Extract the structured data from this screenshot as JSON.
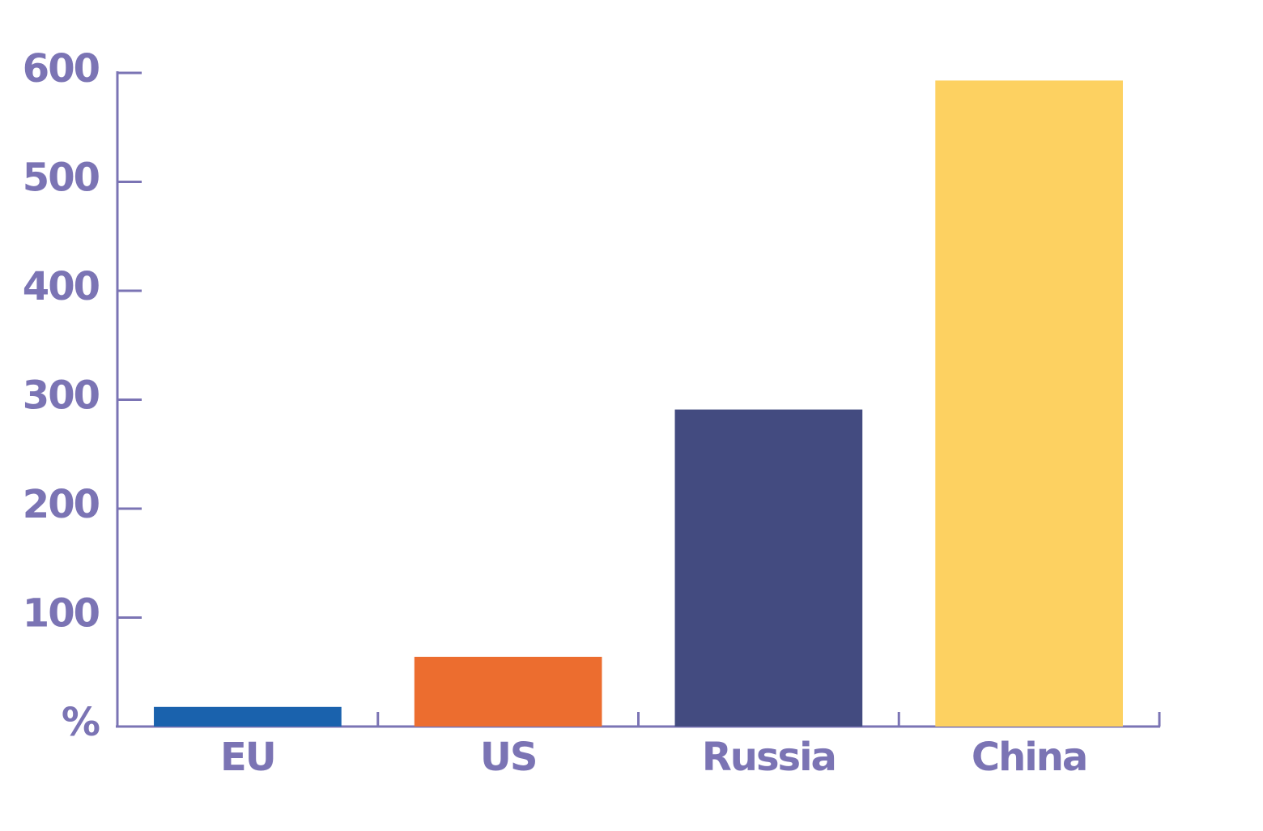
{
  "chart_data": {
    "type": "bar",
    "categories": [
      "EU",
      "US",
      "Russia",
      "China"
    ],
    "values": [
      18,
      64,
      291,
      593
    ],
    "colors": [
      "#1a62ad",
      "#ec6d2f",
      "#434b80",
      "#fdd161"
    ],
    "axis_color": "#7b74b4",
    "ylim": [
      0,
      600
    ],
    "yticks": [
      {
        "value": 0,
        "label": "%"
      },
      100,
      200,
      300,
      400,
      500,
      600
    ]
  }
}
